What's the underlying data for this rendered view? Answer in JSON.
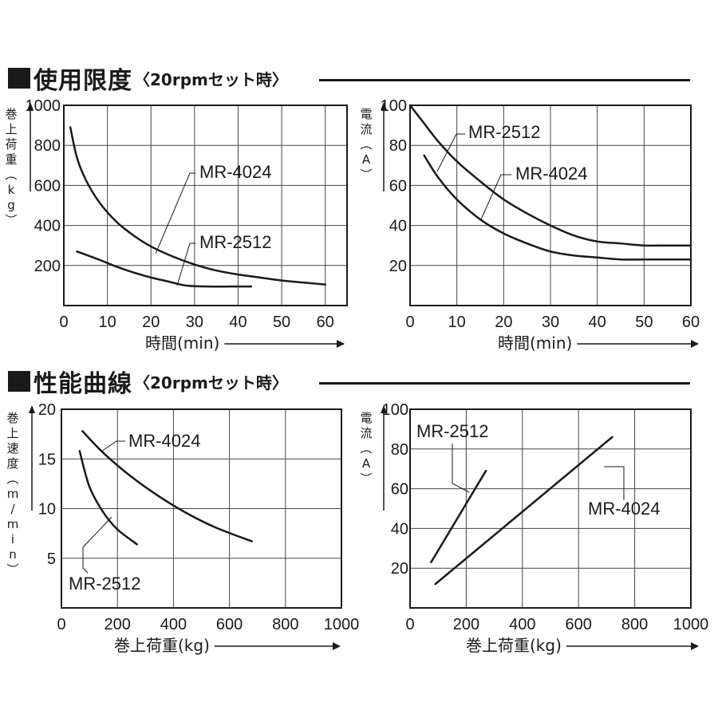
{
  "sections": [
    {
      "title": "使用限度",
      "subtitle": "〈20rpmセット時〉"
    },
    {
      "title": "性能曲線",
      "subtitle": "〈20rpmセット時〉"
    }
  ],
  "chart_data": [
    {
      "type": "line",
      "xlabel": "時間(min)",
      "ylabel": "巻上荷重(kg)",
      "xlim": [
        0,
        65
      ],
      "ylim": [
        0,
        1000
      ],
      "xticks": [
        0,
        10,
        20,
        30,
        40,
        50,
        60
      ],
      "yticks": [
        200,
        400,
        600,
        800,
        1000
      ],
      "grid": true,
      "series": [
        {
          "name": "MR-4024",
          "x": [
            1.5,
            3,
            5,
            8,
            12,
            16,
            20,
            25,
            30,
            35,
            40,
            45,
            50,
            55,
            60
          ],
          "y": [
            890,
            740,
            630,
            520,
            420,
            350,
            295,
            245,
            205,
            175,
            155,
            140,
            125,
            115,
            105
          ]
        },
        {
          "name": "MR-2512",
          "x": [
            3,
            8,
            12,
            16,
            20,
            24,
            28,
            33,
            38,
            43
          ],
          "y": [
            270,
            230,
            195,
            165,
            140,
            120,
            100,
            95,
            95,
            95
          ]
        }
      ]
    },
    {
      "type": "line",
      "xlabel": "時間(min)",
      "ylabel": "電流(A)",
      "xlim": [
        0,
        60
      ],
      "ylim": [
        0,
        100
      ],
      "xticks": [
        0,
        10,
        20,
        30,
        40,
        50,
        60
      ],
      "yticks": [
        20,
        40,
        60,
        80,
        100
      ],
      "grid": true,
      "series": [
        {
          "name": "MR-2512",
          "x": [
            0,
            3,
            6,
            10,
            15,
            20,
            25,
            30,
            35,
            40,
            45,
            50,
            55,
            60
          ],
          "y": [
            100,
            91,
            82,
            72,
            62,
            53,
            46,
            40,
            35,
            32,
            31,
            30,
            30,
            30
          ]
        },
        {
          "name": "MR-4024",
          "x": [
            3,
            6,
            10,
            15,
            20,
            25,
            30,
            35,
            40,
            45,
            50,
            55,
            60
          ],
          "y": [
            75,
            64,
            53,
            43,
            36,
            31,
            27,
            25,
            24,
            23,
            23,
            23,
            23
          ]
        }
      ]
    },
    {
      "type": "line",
      "xlabel": "巻上荷重(kg)",
      "ylabel": "巻上速度(m/min)",
      "xlim": [
        0,
        1000
      ],
      "ylim": [
        0,
        20
      ],
      "xticks": [
        0,
        200,
        400,
        600,
        800,
        1000
      ],
      "yticks": [
        5,
        10,
        15,
        20
      ],
      "grid": true,
      "series": [
        {
          "name": "MR-4024",
          "x": [
            75,
            150,
            250,
            350,
            450,
            550,
            680
          ],
          "y": [
            17.8,
            15.6,
            13.2,
            11.2,
            9.5,
            8.1,
            6.7
          ]
        },
        {
          "name": "MR-2512",
          "x": [
            65,
            100,
            150,
            200,
            270
          ],
          "y": [
            15.8,
            12.2,
            9.6,
            7.9,
            6.4
          ]
        }
      ]
    },
    {
      "type": "line",
      "xlabel": "巻上荷重(kg)",
      "ylabel": "電流(A)",
      "xlim": [
        0,
        1000
      ],
      "ylim": [
        0,
        100
      ],
      "xticks": [
        0,
        200,
        400,
        600,
        800,
        1000
      ],
      "yticks": [
        20,
        40,
        60,
        80,
        100
      ],
      "grid": true,
      "series": [
        {
          "name": "MR-2512",
          "x": [
            75,
            270
          ],
          "y": [
            23,
            69
          ]
        },
        {
          "name": "MR-4024",
          "x": [
            90,
            720
          ],
          "y": [
            12,
            86
          ]
        }
      ]
    }
  ]
}
